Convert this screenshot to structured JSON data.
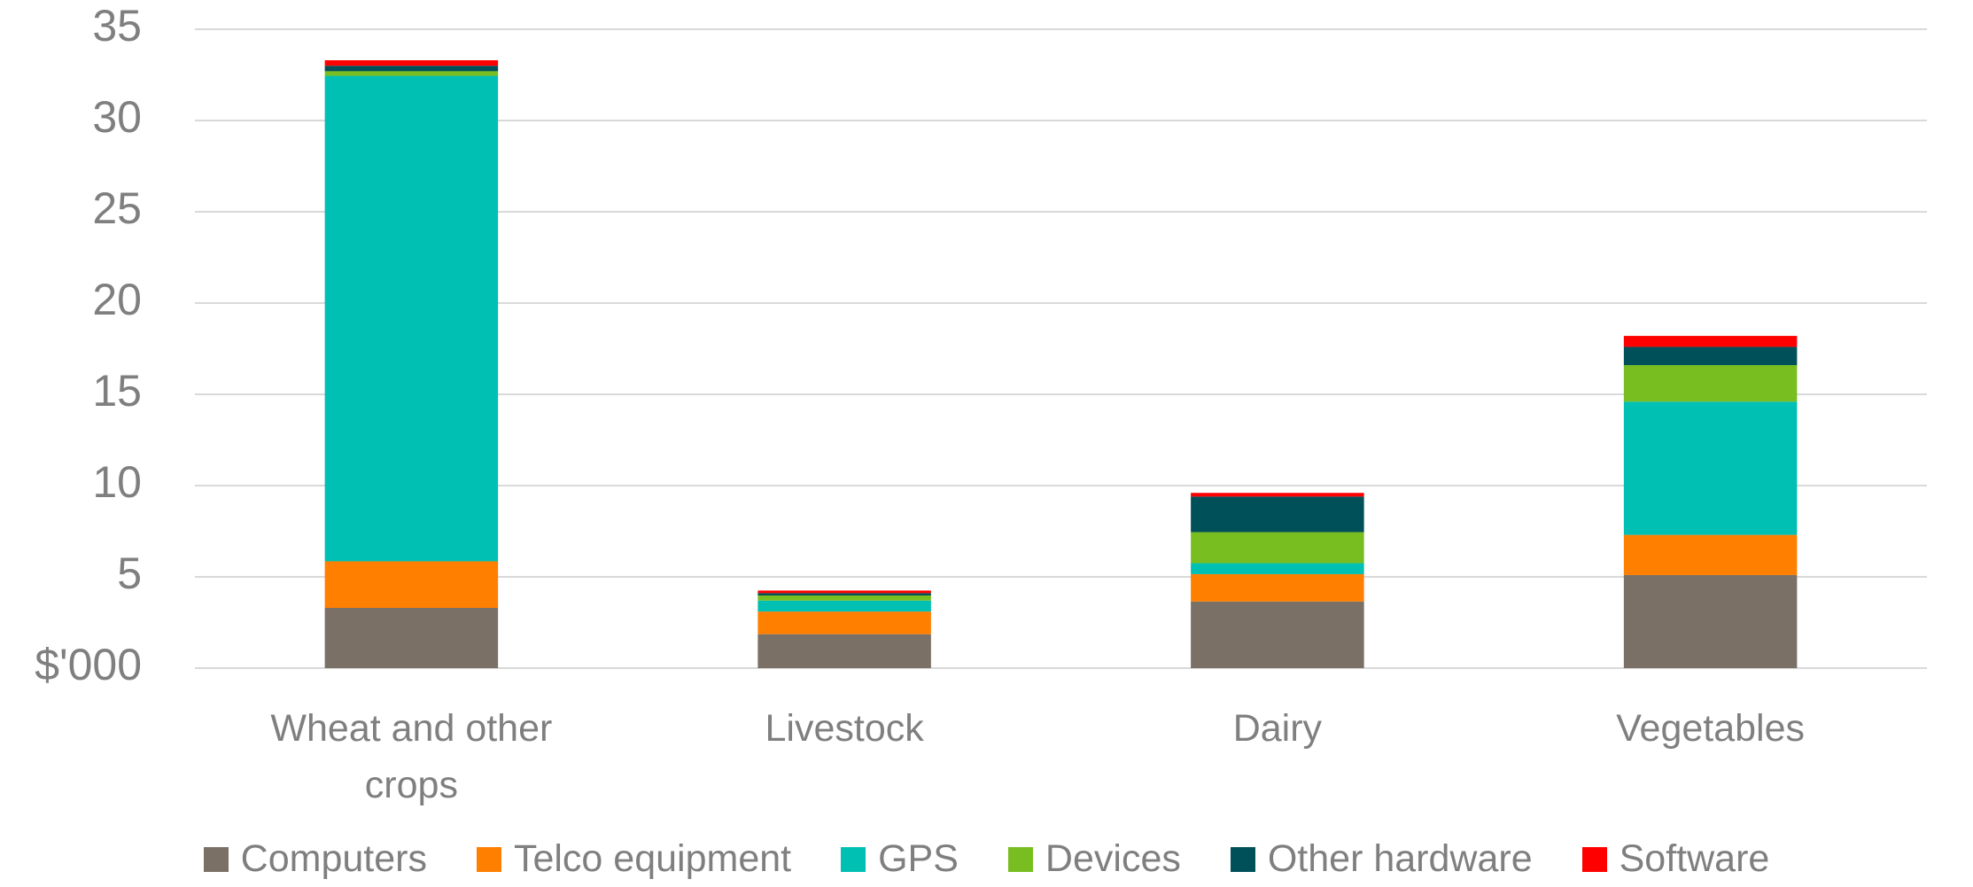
{
  "chart_data": {
    "type": "stacked_bar",
    "categories": [
      "Wheat and other crops",
      "Livestock",
      "Dairy",
      "Vegetables"
    ],
    "series": [
      {
        "name": "Computers",
        "color": "#7a7065",
        "values": [
          3.3,
          1.86,
          3.65,
          5.1
        ]
      },
      {
        "name": "Telco equipment",
        "color": "#ff7f00",
        "values": [
          2.55,
          1.24,
          1.5,
          2.2
        ]
      },
      {
        "name": "GPS",
        "color": "#00bfb3",
        "values": [
          26.6,
          0.6,
          0.6,
          7.3
        ]
      },
      {
        "name": "Devices",
        "color": "#78be20",
        "values": [
          0.25,
          0.28,
          1.7,
          2.0
        ]
      },
      {
        "name": "Other hardware",
        "color": "#005059",
        "values": [
          0.3,
          0.13,
          1.95,
          1.0
        ]
      },
      {
        "name": "Software",
        "color": "#ff0000",
        "values": [
          0.3,
          0.14,
          0.2,
          0.6
        ]
      }
    ],
    "ylim": [
      0,
      35
    ],
    "yticks": [
      {
        "value": 0,
        "label": "$'000"
      },
      5,
      10,
      15,
      20,
      25,
      30,
      35
    ],
    "grid": true,
    "legend": "bottom"
  }
}
